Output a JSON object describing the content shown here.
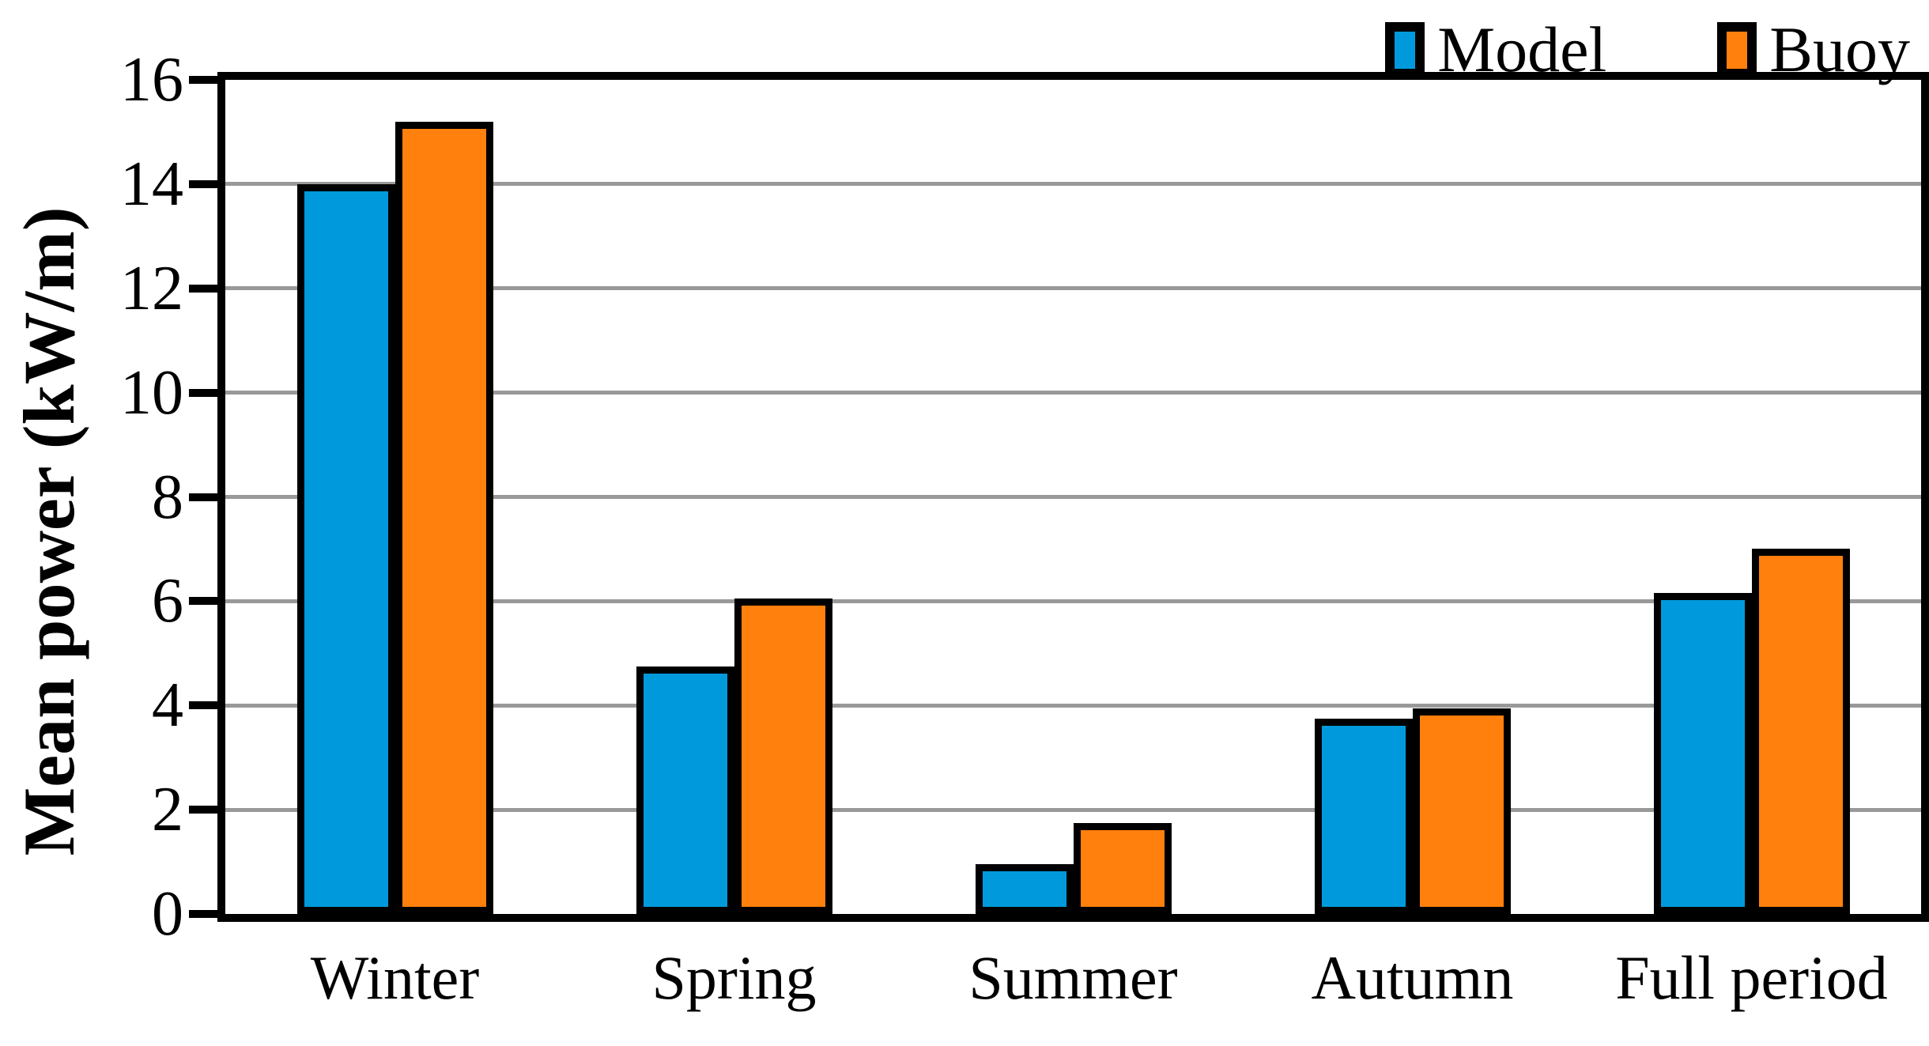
{
  "chart_data": {
    "type": "bar",
    "categories": [
      "Winter",
      "Spring",
      "Summer",
      "Autumn",
      "Full period"
    ],
    "series": [
      {
        "name": "Model",
        "color": "#009ADC",
        "values": [
          14.0,
          4.75,
          0.95,
          3.75,
          6.15
        ]
      },
      {
        "name": "Buoy",
        "color": "#FF800D",
        "values": [
          15.2,
          6.05,
          1.75,
          3.95,
          7.0
        ]
      }
    ],
    "title": "",
    "xlabel": "",
    "ylabel": "Mean power (kW/m)",
    "ylim": [
      0,
      16
    ],
    "yticks": [
      0,
      2,
      4,
      6,
      8,
      10,
      12,
      14,
      16
    ],
    "grid": true,
    "legend_position": "top-right",
    "colors": {
      "grid": "#999999",
      "axis": "#000000",
      "bar_border": "#000000",
      "background": "#FFFFFF"
    }
  }
}
